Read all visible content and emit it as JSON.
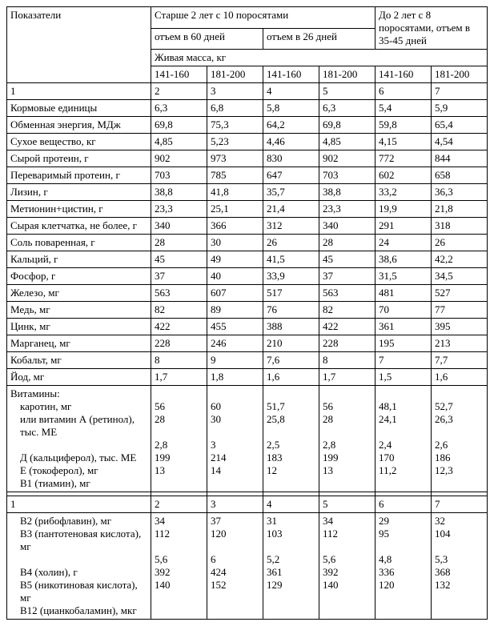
{
  "headers": {
    "col0": "Показатели",
    "group1": "Старше 2 лет с 10 поросятами",
    "group2": "До 2 лет с 8 поросятами, отъем в 35-45 дней",
    "sub1": "отъем в 60 дней",
    "sub2": "отъем в 26 дней",
    "massrow": "Живая масса, кг",
    "w1": "141-160",
    "w2": "181-200",
    "w3": "141-160",
    "w4": "181-200",
    "w5": "141-160",
    "w6": "181-200"
  },
  "numrow": [
    "1",
    "2",
    "3",
    "4",
    "5",
    "6",
    "7"
  ],
  "rows": [
    {
      "label": "Кормовые единицы",
      "v": [
        "6,3",
        "6,8",
        "5,8",
        "6,3",
        "5,4",
        "5,9"
      ]
    },
    {
      "label": "Обменная энергия, МДж",
      "v": [
        "69,8",
        "75,3",
        "64,2",
        "69,8",
        "59,8",
        "65,4"
      ]
    },
    {
      "label": "Сухое вещество, кг",
      "v": [
        "4,85",
        "5,23",
        "4,46",
        "4,85",
        "4,15",
        "4,54"
      ]
    },
    {
      "label": "Сырой протеин, г",
      "v": [
        "902",
        "973",
        "830",
        "902",
        "772",
        "844"
      ]
    },
    {
      "label": "Переваримый протеин, г",
      "v": [
        "703",
        "785",
        "647",
        "703",
        "602",
        "658"
      ]
    },
    {
      "label": "Лизин, г",
      "v": [
        "38,8",
        "41,8",
        "35,7",
        "38,8",
        "33,2",
        "36,3"
      ]
    },
    {
      "label": "Метионин+цистин, г",
      "v": [
        "23,3",
        "25,1",
        "21,4",
        "23,3",
        "19,9",
        "21,8"
      ]
    },
    {
      "label": "Сырая клетчатка, не более, г",
      "v": [
        "340",
        "366",
        "312",
        "340",
        "291",
        "318"
      ]
    },
    {
      "label": "Соль поваренная, г",
      "v": [
        "28",
        "30",
        "26",
        "28",
        "24",
        "26"
      ]
    },
    {
      "label": "Кальций, г",
      "v": [
        "45",
        "49",
        "41,5",
        "45",
        "38,6",
        "42,2"
      ]
    },
    {
      "label": "Фосфор, г",
      "v": [
        "37",
        "40",
        "33,9",
        "37",
        "31,5",
        "34,5"
      ]
    },
    {
      "label": "Железо, мг",
      "v": [
        "563",
        "607",
        "517",
        "563",
        "481",
        "527"
      ]
    },
    {
      "label": "Медь, мг",
      "v": [
        "82",
        "89",
        "76",
        "82",
        "70",
        "77"
      ]
    },
    {
      "label": "Цинк, мг",
      "v": [
        "422",
        "455",
        "388",
        "422",
        "361",
        "395"
      ]
    },
    {
      "label": "Марганец, мг",
      "v": [
        "228",
        "246",
        "210",
        "228",
        "195",
        "213"
      ]
    },
    {
      "label": "Кобальт, мг",
      "v": [
        "8",
        "9",
        "7,6",
        "8",
        "7",
        "7,7"
      ]
    },
    {
      "label": "Йод, мг",
      "v": [
        "1,7",
        "1,8",
        "1,6",
        "1,7",
        "1,5",
        "1,6"
      ]
    }
  ],
  "vitBlock": {
    "head": "Витамины:",
    "items": [
      {
        "label": "каротин, мг",
        "v": [
          "56",
          "60",
          "51,7",
          "56",
          "48,1",
          "52,7"
        ]
      },
      {
        "label": "или витамин А (ретинол), тыс. МЕ",
        "v": [
          "28",
          "30",
          "25,8",
          "28",
          "24,1",
          "26,3"
        ]
      },
      {
        "label": "Д (кальциферол), тыс. МЕ",
        "v": [
          "2,8",
          "3",
          "2,5",
          "2,8",
          "2,4",
          "2,6"
        ]
      },
      {
        "label": "Е (токоферол), мг",
        "v": [
          "199",
          "214",
          "183",
          "199",
          "170",
          "186"
        ]
      },
      {
        "label": "В1 (тиамин), мг",
        "v": [
          "13",
          "14",
          "12",
          "13",
          "11,2",
          "12,3"
        ]
      }
    ]
  },
  "spacerRow": [
    "",
    "",
    "",
    "",
    "",
    "",
    ""
  ],
  "numrow2": [
    "1",
    "2",
    "3",
    "4",
    "5",
    "6",
    "7"
  ],
  "vitBlock2": {
    "items": [
      {
        "label": "В2 (рибофлавин), мг",
        "v": [
          "34",
          "37",
          "31",
          "34",
          "29",
          "32"
        ]
      },
      {
        "label": "В3 (пантотеновая кислота), мг",
        "v": [
          "112",
          "120",
          "103",
          "112",
          "95",
          "104"
        ]
      },
      {
        "label": "В4  (холин), г",
        "v": [
          "5,6",
          "6",
          "5,2",
          "5,6",
          "4,8",
          "5,3"
        ]
      },
      {
        "label": "В5 (никотиновая кислота), мг",
        "v": [
          "392",
          "424",
          "361",
          "392",
          "336",
          "368"
        ]
      },
      {
        "label": "В12 (цианкобаламин), мкг",
        "v": [
          "140",
          "152",
          "129",
          "140",
          "120",
          "132"
        ]
      }
    ]
  }
}
